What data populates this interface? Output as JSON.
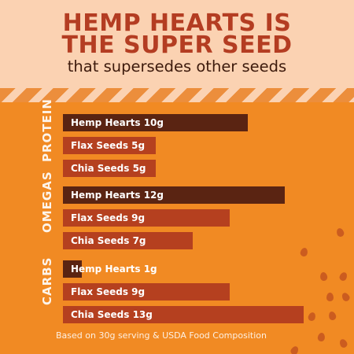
{
  "header": {
    "title_line1": "HEMP HEARTS IS",
    "title_line2": "THE SUPER SEED",
    "subtitle": "that supersedes other seeds"
  },
  "colors": {
    "header_bg": "#fbd2b2",
    "title": "#b43d22",
    "subtitle": "#3d1a0c",
    "main_bg": "#f18a23",
    "hemp_bar": "#5a2412",
    "other_bar": "#b5401f",
    "seed": "#c4541e"
  },
  "chart_data": {
    "type": "bar",
    "orientation": "horizontal",
    "unit": "g",
    "xlim": [
      0,
      15
    ],
    "groups": [
      {
        "category": "PROTEIN",
        "bars": [
          {
            "label": "Hemp Hearts 10g",
            "seed": "Hemp Hearts",
            "value": 10
          },
          {
            "label": "Flax Seeds 5g",
            "seed": "Flax Seeds",
            "value": 5
          },
          {
            "label": "Chia Seeds 5g",
            "seed": "Chia Seeds",
            "value": 5
          }
        ]
      },
      {
        "category": "OMEGAS",
        "bars": [
          {
            "label": "Hemp Hearts 12g",
            "seed": "Hemp Hearts",
            "value": 12
          },
          {
            "label": "Flax Seeds 9g",
            "seed": "Flax Seeds",
            "value": 9
          },
          {
            "label": "Chia Seeds 7g",
            "seed": "Chia Seeds",
            "value": 7
          }
        ]
      },
      {
        "category": "CARBS",
        "bars": [
          {
            "label": "Hemp Hearts 1g",
            "seed": "Hemp Hearts",
            "value": 1
          },
          {
            "label": "Flax Seeds 9g",
            "seed": "Flax Seeds",
            "value": 9
          },
          {
            "label": "Chia Seeds 13g",
            "seed": "Chia Seeds",
            "value": 13
          }
        ]
      }
    ],
    "footnote": "Based on 30g serving & USDA Food Composition"
  }
}
